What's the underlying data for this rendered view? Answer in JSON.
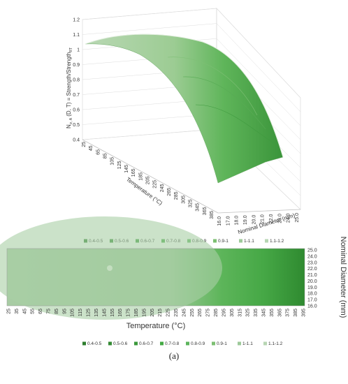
{
  "caption": "(a)",
  "chart_data": [
    {
      "type": "surface",
      "zlabel": "N",
      "zlabel_sub": "σ, A",
      "zlabel_rest": " (D, T) = Strength/Strength",
      "zlabel_sup": "RT",
      "xlabel": "Temperature (°C)",
      "ylabel": "Nominal Diameter (mm)",
      "z_ticks": [
        "0.4",
        "0.5",
        "0.6",
        "0.7",
        "0.8",
        "0.9",
        "1",
        "1.1",
        "1.2"
      ],
      "x_ticks": [
        "25",
        "45",
        "65",
        "85",
        "105",
        "125",
        "145",
        "165",
        "185",
        "205",
        "225",
        "245",
        "265",
        "285",
        "305",
        "325",
        "345",
        "365",
        "385"
      ],
      "y_ticks": [
        "16.0",
        "17.0",
        "18.0",
        "19.0",
        "20.0",
        "21.0",
        "22.0",
        "23.0",
        "24.0",
        "25.0"
      ],
      "legend": [
        {
          "label": "0.4-0.5",
          "color": "#2e7d2e"
        },
        {
          "label": "0.5-0.6",
          "color": "#348a34"
        },
        {
          "label": "0.6-0.7",
          "color": "#3b983b"
        },
        {
          "label": "0.7-0.8",
          "color": "#44a944"
        },
        {
          "label": "0.8-0.9",
          "color": "#5db45d"
        },
        {
          "label": "0.9-1",
          "color": "#7cbf72"
        },
        {
          "label": "1-1.1",
          "color": "#9dc99a"
        },
        {
          "label": "1.1-1.2",
          "color": "#b7d6b3"
        }
      ]
    },
    {
      "type": "contour",
      "xlabel": "Temperature (°C)",
      "ylabel": "Nominal Diameter (mm)",
      "x_ticks": [
        "25",
        "35",
        "45",
        "55",
        "65",
        "75",
        "85",
        "95",
        "105",
        "115",
        "125",
        "135",
        "145",
        "155",
        "165",
        "175",
        "185",
        "195",
        "205",
        "215",
        "225",
        "235",
        "245",
        "255",
        "265",
        "275",
        "285",
        "295",
        "305",
        "315",
        "325",
        "335",
        "345",
        "355",
        "365",
        "375",
        "385",
        "395"
      ],
      "y_ticks": [
        "25.0",
        "24.0",
        "23.0",
        "22.0",
        "21.0",
        "20.0",
        "19.0",
        "18.0",
        "17.0",
        "16.0"
      ],
      "legend": [
        {
          "label": "0.4-0.5",
          "color": "#2e7d2e"
        },
        {
          "label": "0.5-0.6",
          "color": "#348a34"
        },
        {
          "label": "0.6-0.7",
          "color": "#3b983b"
        },
        {
          "label": "0.7-0.8",
          "color": "#44a944"
        },
        {
          "label": "0.8-0.9",
          "color": "#5db45d"
        },
        {
          "label": "0.9-1",
          "color": "#7cbf72"
        },
        {
          "label": "1-1.1",
          "color": "#9dc99a"
        },
        {
          "label": "1.1-1.2",
          "color": "#b7d6b3"
        }
      ]
    }
  ]
}
